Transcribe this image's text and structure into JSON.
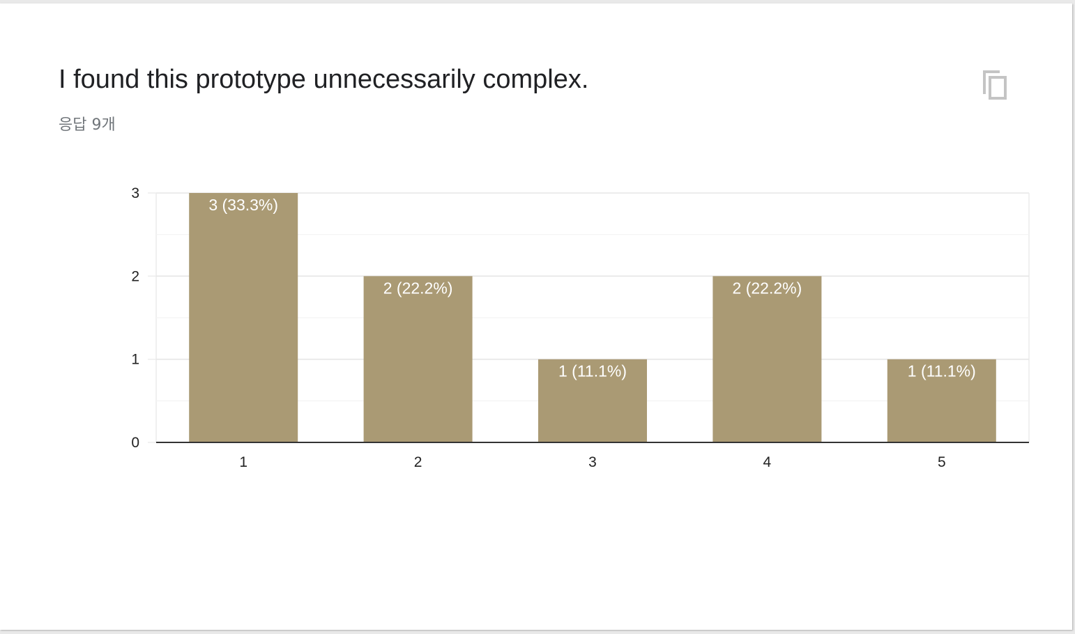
{
  "card": {
    "title": "I found this prototype unnecessarily complex.",
    "response_count": "응답 9개",
    "copy_icon": "copy-icon"
  },
  "colors": {
    "bar": "#aa9a74",
    "grid": "#ececec",
    "axis": "#333333"
  },
  "chart_data": {
    "type": "bar",
    "categories": [
      "1",
      "2",
      "3",
      "4",
      "5"
    ],
    "values": [
      3,
      2,
      1,
      2,
      1
    ],
    "bar_labels": [
      "3 (33.3%)",
      "2 (22.2%)",
      "1 (11.1%)",
      "2 (22.2%)",
      "1 (11.1%)"
    ],
    "title": "",
    "xlabel": "",
    "ylabel": "",
    "ylim": [
      0,
      3
    ],
    "yticks": [
      "0",
      "1",
      "2",
      "3"
    ],
    "grid": true,
    "legend": "none"
  }
}
